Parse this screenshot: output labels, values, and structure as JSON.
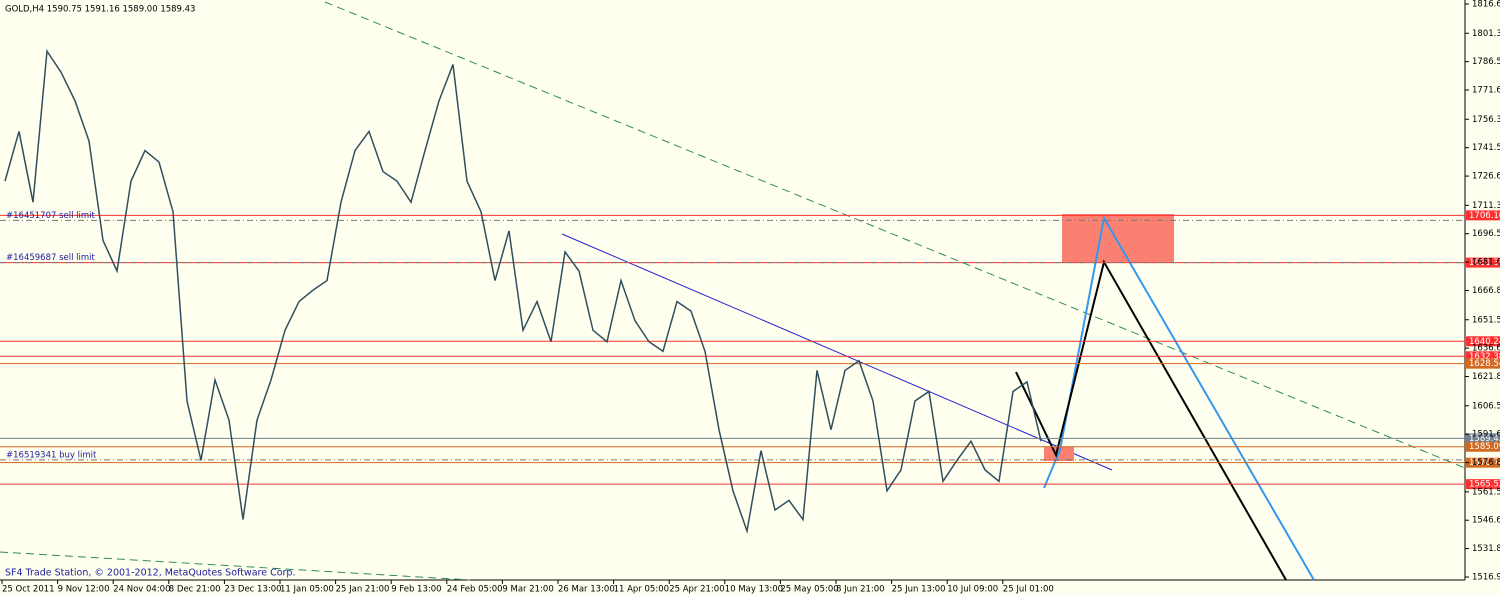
{
  "header": {
    "title": "GOLD,H4  1590.75 1591.16 1589.00 1589.43"
  },
  "footer": {
    "text": "SF4 Trade Station, © 2001-2012, MetaQuotes Software Corp."
  },
  "axis": {
    "ylim": [
      1516.95,
      1816.65
    ],
    "yticks": [
      1816.65,
      1801.35,
      {
        "value": 1786.5,
        "label": "1786.50"
      },
      1771.65,
      1756.35,
      {
        "value": 1741.5,
        "label": "1741.50"
      },
      1726.65,
      1711.35,
      {
        "value": 1696.5,
        "label": "1696.50"
      },
      1681.65,
      {
        "value": 1666.8,
        "label": "1666.80"
      },
      {
        "value": 1651.5,
        "label": "1651.50"
      },
      1636.65,
      {
        "value": 1621.8,
        "label": "1621.80"
      },
      {
        "value": 1606.5,
        "label": "1606.50"
      },
      1591.65,
      {
        "value": 1576.8,
        "label": "1576.80"
      },
      {
        "value": 1561.5,
        "label": "1561.50"
      },
      1546.65,
      {
        "value": 1531.8,
        "label": "1531.80"
      },
      1516.95
    ],
    "xlabels": [
      "25 Oct 2011",
      "9 Nov 12:00",
      "24 Nov 04:00",
      "8 Dec 21:00",
      "23 Dec 13:00",
      "11 Jan 05:00",
      "25 Jan 21:00",
      "9 Feb 13:00",
      "24 Feb 05:00",
      "9 Mar 21:00",
      "26 Mar 13:00",
      "11 Apr 05:00",
      "25 Apr 21:00",
      "10 May 13:00",
      "25 May 05:00",
      "8 Jun 21:00",
      "25 Jun 13:00",
      "10 Jul 09:00",
      "25 Jul 01:00"
    ]
  },
  "price": {
    "color": "#2f4f5f",
    "close": [
      1724,
      1750,
      1713,
      1792,
      1781,
      1766,
      1745,
      1693,
      1677,
      1724,
      1740,
      1734,
      1708,
      1609,
      1578,
      1620,
      1599,
      1547,
      1599,
      1620,
      1646,
      1661,
      1667,
      1672,
      1713,
      1740,
      1750,
      1729,
      1724,
      1713,
      1740,
      1766,
      1785,
      1724,
      1708,
      1672,
      1698,
      1646,
      1661,
      1640,
      1687,
      1677,
      1646,
      1640,
      1672,
      1651,
      1640,
      1635,
      1661,
      1656,
      1635,
      1594,
      1562,
      1541,
      1583,
      1552,
      1557,
      1547,
      1625,
      1594,
      1625,
      1630,
      1609,
      1562,
      1573,
      1609,
      1614,
      1567,
      1578,
      1588,
      1573,
      1567,
      1614,
      1619,
      1588
    ]
  },
  "levels": [
    {
      "price": 1706.1,
      "label": "1706.10",
      "color": "#ff3030"
    },
    {
      "price": 1681.39,
      "label": "1681.39",
      "color": "#ff3030"
    },
    {
      "price": 1640.24,
      "label": "1640.24",
      "color": "#ff3030"
    },
    {
      "price": 1632.38,
      "label": "1632.38",
      "color": "#ff3030"
    },
    {
      "price": 1628.54,
      "label": "1628.54",
      "color": "#d2691e"
    },
    {
      "price": 1589.43,
      "label": "1589.43",
      "color": "#708090"
    },
    {
      "price": 1585.09,
      "label": "1585.09",
      "color": "#d2691e"
    },
    {
      "price": 1576.74,
      "label": "1576.74",
      "color": "#d2691e"
    },
    {
      "price": 1565.52,
      "label": "1565.52",
      "color": "#ff3030"
    }
  ],
  "orders": [
    {
      "price": 1703.5,
      "label": "#16451707 sell limit"
    },
    {
      "price": 1681.39,
      "label": "#16459687 sell limit"
    },
    {
      "price": 1578.2,
      "label": "#16519341 buy limit"
    }
  ]
}
